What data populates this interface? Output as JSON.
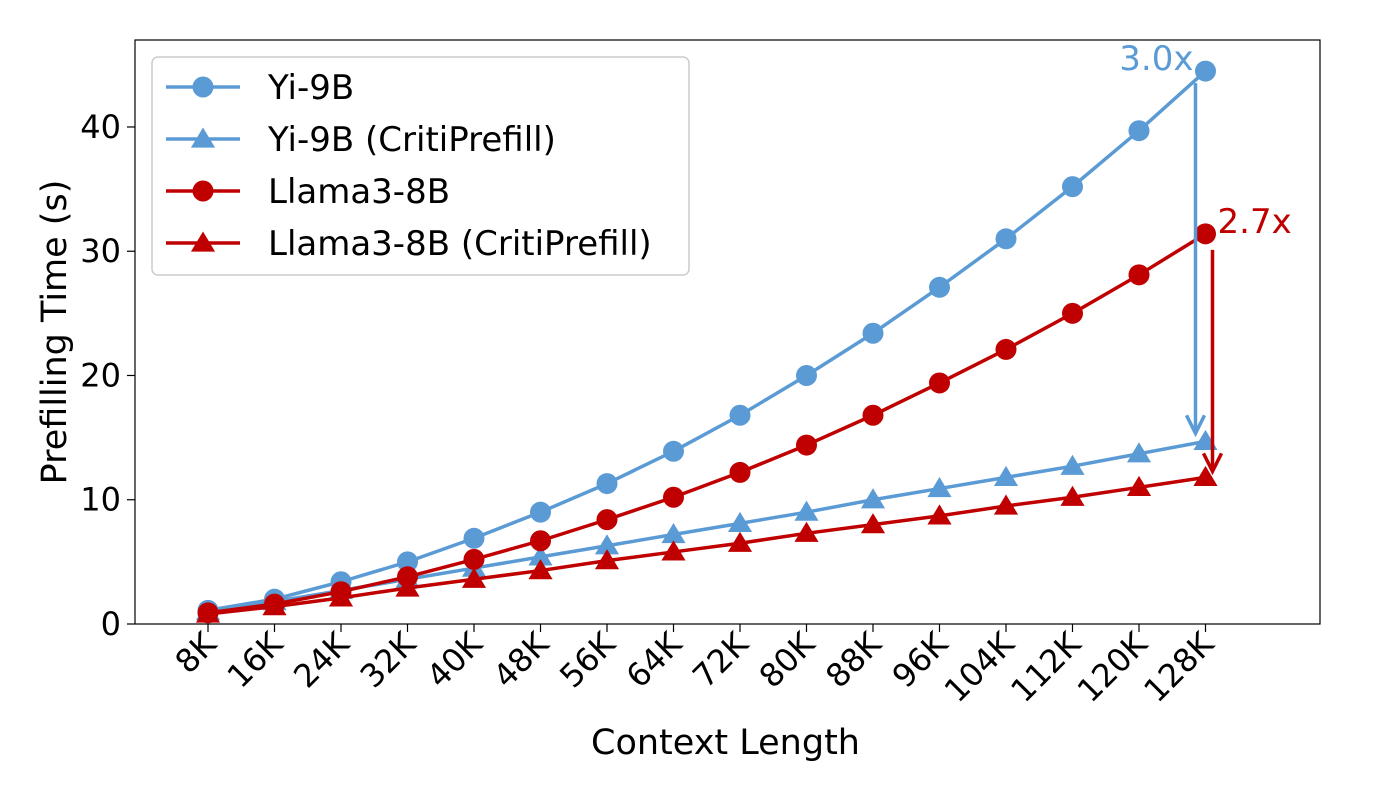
{
  "chart_data": {
    "type": "line",
    "xlabel": "Context Length",
    "ylabel": "Prefilling Time (s)",
    "categories": [
      "8K",
      "16K",
      "24K",
      "32K",
      "40K",
      "48K",
      "56K",
      "64K",
      "72K",
      "80K",
      "88K",
      "96K",
      "104K",
      "112K",
      "120K",
      "128K"
    ],
    "ylim": [
      0,
      47
    ],
    "yticks": [
      0,
      10,
      20,
      30,
      40
    ],
    "grid": false,
    "legend_position": "top-left",
    "series": [
      {
        "name": "Yi-9B",
        "marker": "circle",
        "color": "#5B9BD5",
        "values": [
          1.1,
          2.0,
          3.4,
          5.0,
          6.9,
          9.0,
          11.3,
          13.9,
          16.8,
          20.0,
          23.4,
          27.1,
          31.0,
          35.2,
          39.7,
          44.5
        ]
      },
      {
        "name": "Yi-9B (CritiPrefill)",
        "marker": "triangle",
        "color": "#5B9BD5",
        "values": [
          1.0,
          1.8,
          2.7,
          3.6,
          4.5,
          5.4,
          6.3,
          7.2,
          8.1,
          9.0,
          10.0,
          10.9,
          11.8,
          12.7,
          13.7,
          14.7
        ]
      },
      {
        "name": "Llama3-8B",
        "marker": "circle",
        "color": "#C00000",
        "values": [
          0.9,
          1.6,
          2.6,
          3.8,
          5.2,
          6.7,
          8.4,
          10.2,
          12.2,
          14.4,
          16.8,
          19.4,
          22.1,
          25.0,
          28.1,
          31.4
        ]
      },
      {
        "name": "Llama3-8B (CritiPrefill)",
        "marker": "triangle",
        "color": "#C00000",
        "values": [
          0.8,
          1.4,
          2.1,
          2.9,
          3.6,
          4.3,
          5.1,
          5.8,
          6.5,
          7.3,
          8.0,
          8.7,
          9.5,
          10.2,
          11.0,
          11.8
        ]
      }
    ],
    "annotations": [
      {
        "text": "3.0x",
        "color": "#5B9BD5",
        "from_series": 0,
        "to_series": 1,
        "category_index": 15
      },
      {
        "text": "2.7x",
        "color": "#C00000",
        "from_series": 2,
        "to_series": 3,
        "category_index": 15
      }
    ]
  }
}
